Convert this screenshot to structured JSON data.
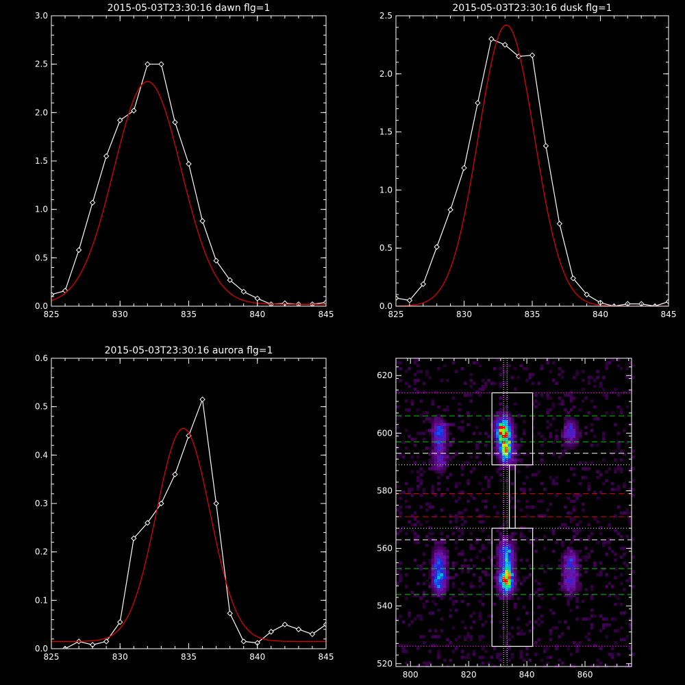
{
  "chart_data": [
    {
      "type": "line",
      "title": "2015-05-03T23:30:16 dawn flg=1",
      "xlim": [
        825,
        845
      ],
      "ylim": [
        0,
        3.0
      ],
      "xticks": [
        825,
        830,
        835,
        840,
        845
      ],
      "yticks": [
        0.0,
        0.5,
        1.0,
        1.5,
        2.0,
        2.5,
        3.0
      ],
      "ytick_labels": [
        "0.0",
        "0.5",
        "1.0",
        "1.5",
        "2.0",
        "2.5",
        "3.0"
      ],
      "series": [
        {
          "role": "data",
          "color": "#ffffff",
          "marker": "diamond",
          "x": [
            825,
            826,
            827,
            828,
            829,
            830,
            831,
            832,
            833,
            834,
            835,
            836,
            837,
            838,
            839,
            840,
            841,
            842,
            843,
            844,
            845
          ],
          "y": [
            0.12,
            0.16,
            0.58,
            1.07,
            1.55,
            1.92,
            2.02,
            2.5,
            2.5,
            1.9,
            1.47,
            0.88,
            0.47,
            0.27,
            0.15,
            0.08,
            0.02,
            0.03,
            0.02,
            0.02,
            0.04
          ]
        },
        {
          "role": "gaussian_fit",
          "color": "#e00000",
          "amplitude": 2.3,
          "center": 832.0,
          "sigma": 2.45,
          "offset": 0.02
        }
      ]
    },
    {
      "type": "line",
      "title": "2015-05-03T23:30:16 dusk flg=1",
      "xlim": [
        825,
        845
      ],
      "ylim": [
        0,
        2.5
      ],
      "xticks": [
        825,
        830,
        835,
        840,
        845
      ],
      "yticks": [
        0.0,
        0.5,
        1.0,
        1.5,
        2.0,
        2.5
      ],
      "ytick_labels": [
        "0.0",
        "0.5",
        "1.0",
        "1.5",
        "2.0",
        "2.5"
      ],
      "series": [
        {
          "role": "data",
          "color": "#ffffff",
          "marker": "diamond",
          "x": [
            825,
            826,
            827,
            828,
            829,
            830,
            831,
            832,
            833,
            834,
            835,
            836,
            837,
            838,
            839,
            840,
            841,
            842,
            843,
            844,
            845
          ],
          "y": [
            0.07,
            0.05,
            0.19,
            0.51,
            0.83,
            1.19,
            1.75,
            2.3,
            2.25,
            2.15,
            2.16,
            1.38,
            0.71,
            0.24,
            0.1,
            0.03,
            0.0,
            0.02,
            0.02,
            0.0,
            0.04
          ]
        },
        {
          "role": "gaussian_fit",
          "color": "#e00000",
          "amplitude": 2.42,
          "center": 833.1,
          "sigma": 2.05,
          "offset": 0.0
        }
      ]
    },
    {
      "type": "line",
      "title": "2015-05-03T23:30:16 aurora flg=1",
      "xlim": [
        825,
        845
      ],
      "ylim": [
        0,
        0.6
      ],
      "xticks": [
        825,
        830,
        835,
        840,
        845
      ],
      "yticks": [
        0.0,
        0.1,
        0.2,
        0.3,
        0.4,
        0.5,
        0.6
      ],
      "ytick_labels": [
        "0.0",
        "0.1",
        "0.2",
        "0.3",
        "0.4",
        "0.5",
        "0.6"
      ],
      "series": [
        {
          "role": "data",
          "color": "#ffffff",
          "marker": "diamond",
          "x": [
            826,
            827,
            828,
            829,
            830,
            831,
            832,
            833,
            834,
            835,
            836,
            837,
            838,
            839,
            840,
            841,
            842,
            843,
            844,
            845
          ],
          "y": [
            0.0,
            0.015,
            0.008,
            0.015,
            0.055,
            0.228,
            0.26,
            0.3,
            0.36,
            0.44,
            0.515,
            0.3,
            0.073,
            0.015,
            0.012,
            0.035,
            0.05,
            0.04,
            0.03,
            0.05
          ]
        },
        {
          "role": "gaussian_fit",
          "color": "#e00000",
          "amplitude": 0.44,
          "center": 834.6,
          "sigma": 1.95,
          "offset": 0.015
        }
      ]
    },
    {
      "type": "heatmap",
      "colormap": "rainbow",
      "xlim": [
        795,
        876
      ],
      "ylim": [
        519,
        626
      ],
      "xticks": [
        800,
        820,
        840,
        860
      ],
      "yticks": [
        520,
        540,
        560,
        580,
        600,
        620
      ],
      "blobs": [
        {
          "x": 810,
          "y": 600,
          "intensity": 0.45
        },
        {
          "x": 810,
          "y": 591,
          "intensity": 0.3
        },
        {
          "x": 832,
          "y": 601,
          "intensity": 1.0
        },
        {
          "x": 833,
          "y": 594,
          "intensity": 0.75
        },
        {
          "x": 855,
          "y": 600,
          "intensity": 0.35
        },
        {
          "x": 810,
          "y": 556,
          "intensity": 0.35
        },
        {
          "x": 810,
          "y": 549,
          "intensity": 0.5
        },
        {
          "x": 833,
          "y": 558,
          "intensity": 0.6
        },
        {
          "x": 833,
          "y": 549,
          "intensity": 1.0
        },
        {
          "x": 855,
          "y": 555,
          "intensity": 0.35
        },
        {
          "x": 855,
          "y": 548,
          "intensity": 0.3
        }
      ],
      "horizontal_lines": [
        {
          "y": 614,
          "color": "#ff00ff",
          "style": "dotted"
        },
        {
          "y": 606,
          "color": "#00cc00",
          "style": "dashed"
        },
        {
          "y": 597,
          "color": "#00cc00",
          "style": "dashed"
        },
        {
          "y": 593,
          "color": "#ffffff",
          "style": "dashed"
        },
        {
          "y": 589,
          "color": "#ffffff",
          "style": "dotted"
        },
        {
          "y": 579,
          "color": "#e00000",
          "style": "dashed"
        },
        {
          "y": 571,
          "color": "#e00000",
          "style": "dashed"
        },
        {
          "y": 567,
          "color": "#ffffff",
          "style": "dotted"
        },
        {
          "y": 563,
          "color": "#ffffff",
          "style": "dashed"
        },
        {
          "y": 553,
          "color": "#00cc00",
          "style": "dashed"
        },
        {
          "y": 544,
          "color": "#00cc00",
          "style": "dashed"
        },
        {
          "y": 526,
          "color": "#ff00ff",
          "style": "dotted"
        }
      ],
      "vertical_lines": [
        {
          "x": 832.0,
          "color": "#ffffff",
          "style": "dotted"
        },
        {
          "x": 833.2,
          "color": "#ffffff",
          "style": "dotted"
        }
      ],
      "boxes": [
        {
          "x0": 828,
          "x1": 842,
          "y0": 589,
          "y1": 614
        },
        {
          "x0": 834,
          "x1": 836,
          "y0": 567,
          "y1": 589
        },
        {
          "x0": 828,
          "x1": 842,
          "y0": 526,
          "y1": 567
        }
      ]
    }
  ]
}
